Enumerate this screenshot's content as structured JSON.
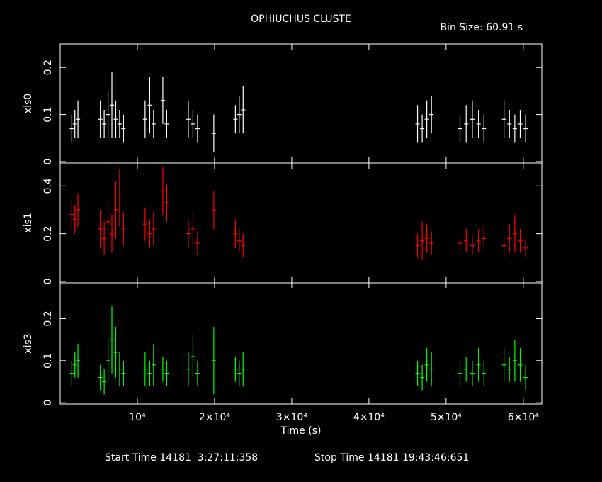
{
  "header": {
    "title": "OPHIUCHUS CLUSTE",
    "bin_size": "Bin Size: 60.91 s"
  },
  "footer": {
    "start": "Start Time 14181  3:27:11:358",
    "stop": "Stop Time 14181 19:43:46:651"
  },
  "chart_data": [
    {
      "type": "errorbar",
      "ylabel": "xis0",
      "color": "#ffffff",
      "x": [
        1500,
        1900,
        2300,
        5200,
        5700,
        6200,
        6700,
        7200,
        7700,
        8200,
        11000,
        11600,
        12100,
        13300,
        13800,
        16600,
        17200,
        17800,
        19900,
        22700,
        23200,
        23700,
        46300,
        46900,
        47500,
        48100,
        51800,
        52600,
        53400,
        54200,
        54900,
        57500,
        58200,
        58900,
        59600,
        60300
      ],
      "values": [
        0.07,
        0.08,
        0.09,
        0.09,
        0.08,
        0.1,
        0.12,
        0.09,
        0.08,
        0.07,
        0.09,
        0.12,
        0.08,
        0.13,
        0.08,
        0.09,
        0.08,
        0.07,
        0.06,
        0.09,
        0.1,
        0.11,
        0.08,
        0.07,
        0.09,
        0.1,
        0.07,
        0.08,
        0.09,
        0.08,
        0.07,
        0.09,
        0.08,
        0.07,
        0.08,
        0.07
      ],
      "errors": [
        0.03,
        0.03,
        0.04,
        0.04,
        0.03,
        0.05,
        0.07,
        0.04,
        0.03,
        0.03,
        0.04,
        0.06,
        0.03,
        0.05,
        0.03,
        0.04,
        0.03,
        0.03,
        0.04,
        0.03,
        0.04,
        0.05,
        0.04,
        0.03,
        0.04,
        0.04,
        0.03,
        0.04,
        0.04,
        0.03,
        0.03,
        0.04,
        0.03,
        0.03,
        0.03,
        0.03
      ],
      "xlim": [
        0,
        62400
      ],
      "ylim": [
        -0.003,
        0.25
      ],
      "yticks": [
        0,
        0.1,
        0.2
      ],
      "xticks": [
        10000,
        20000,
        30000,
        40000,
        50000,
        60000
      ]
    },
    {
      "type": "errorbar",
      "ylabel": "xis1",
      "color": "#ff0000",
      "x": [
        1500,
        1900,
        2300,
        5200,
        5700,
        6200,
        6700,
        7200,
        7700,
        8200,
        11000,
        11600,
        12100,
        13300,
        13800,
        16600,
        17200,
        17800,
        19900,
        22700,
        23200,
        23700,
        46300,
        46900,
        47500,
        48100,
        51800,
        52600,
        53400,
        54200,
        54900,
        57500,
        58200,
        58900,
        59600,
        60300
      ],
      "values": [
        0.28,
        0.26,
        0.3,
        0.22,
        0.18,
        0.25,
        0.2,
        0.3,
        0.35,
        0.22,
        0.24,
        0.2,
        0.22,
        0.38,
        0.33,
        0.2,
        0.22,
        0.16,
        0.3,
        0.2,
        0.17,
        0.15,
        0.15,
        0.17,
        0.18,
        0.16,
        0.16,
        0.17,
        0.15,
        0.17,
        0.18,
        0.15,
        0.18,
        0.2,
        0.17,
        0.14
      ],
      "errors": [
        0.06,
        0.06,
        0.07,
        0.08,
        0.07,
        0.1,
        0.08,
        0.12,
        0.12,
        0.07,
        0.07,
        0.06,
        0.07,
        0.1,
        0.08,
        0.06,
        0.07,
        0.05,
        0.08,
        0.06,
        0.05,
        0.05,
        0.05,
        0.08,
        0.06,
        0.05,
        0.04,
        0.05,
        0.04,
        0.05,
        0.05,
        0.05,
        0.06,
        0.08,
        0.05,
        0.04
      ],
      "xlim": [
        0,
        62400
      ],
      "ylim": [
        -0.006,
        0.496
      ],
      "yticks": [
        0,
        0.2,
        0.4
      ],
      "xticks": [
        10000,
        20000,
        30000,
        40000,
        50000,
        60000
      ]
    },
    {
      "type": "errorbar",
      "ylabel": "xis3",
      "color": "#00ff00",
      "xlabel": "Time (s)",
      "x": [
        1500,
        1900,
        2300,
        5200,
        5700,
        6200,
        6700,
        7200,
        7700,
        8200,
        11000,
        11600,
        12100,
        13300,
        13800,
        16600,
        17200,
        17800,
        19900,
        22700,
        23200,
        23700,
        46300,
        46900,
        47500,
        48100,
        51800,
        52600,
        53400,
        54200,
        54900,
        57500,
        58200,
        58900,
        59600,
        60300
      ],
      "values": [
        0.07,
        0.09,
        0.1,
        0.06,
        0.05,
        0.1,
        0.15,
        0.12,
        0.08,
        0.07,
        0.08,
        0.07,
        0.09,
        0.08,
        0.07,
        0.08,
        0.11,
        0.07,
        0.1,
        0.08,
        0.07,
        0.08,
        0.07,
        0.06,
        0.09,
        0.08,
        0.07,
        0.08,
        0.07,
        0.09,
        0.07,
        0.09,
        0.08,
        0.1,
        0.09,
        0.06
      ],
      "errors": [
        0.03,
        0.03,
        0.04,
        0.03,
        0.03,
        0.05,
        0.08,
        0.06,
        0.04,
        0.03,
        0.04,
        0.03,
        0.05,
        0.03,
        0.03,
        0.04,
        0.05,
        0.03,
        0.08,
        0.03,
        0.03,
        0.04,
        0.03,
        0.03,
        0.04,
        0.04,
        0.03,
        0.03,
        0.03,
        0.04,
        0.03,
        0.04,
        0.03,
        0.05,
        0.04,
        0.03
      ],
      "xlim": [
        0,
        62400
      ],
      "ylim": [
        -0.003,
        0.285
      ],
      "yticks": [
        0,
        0.1,
        0.2
      ],
      "xticks": [
        {
          "value": 10000,
          "label": "10⁴"
        },
        {
          "value": 20000,
          "label": "2×10⁴"
        },
        {
          "value": 30000,
          "label": "3×10⁴"
        },
        {
          "value": 40000,
          "label": "4×10⁴"
        },
        {
          "value": 50000,
          "label": "5×10⁴"
        },
        {
          "value": 60000,
          "label": "6×10⁴"
        }
      ]
    }
  ]
}
